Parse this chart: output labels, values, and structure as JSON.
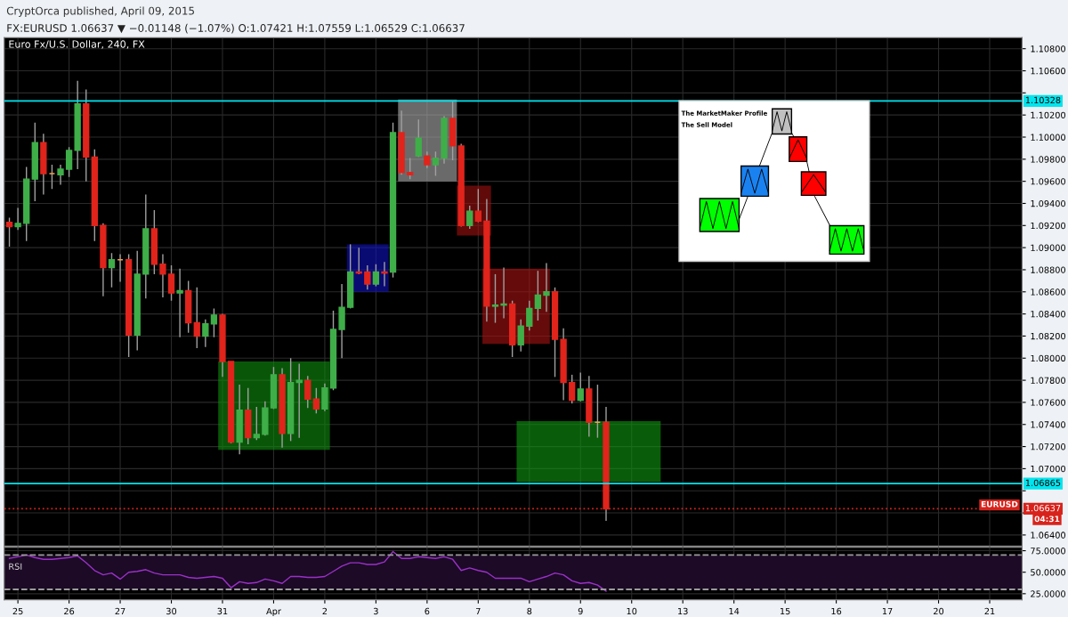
{
  "chart_data": [
    {
      "type": "candlestick",
      "title": "Euro Fx/U.S. Dollar, 240, FX",
      "subtitle": "FX:EURUSD 1.06637 ▼ −0.01148 (−1.07%) O:1.07421 H:1.07559 L:1.06529 C:1.06637",
      "annotations": [
        "CryptOrca published, April 09, 2015",
        "EURUSD",
        "04:31",
        "The MarketMaker Profile",
        "The Sell Model"
      ],
      "categories": [
        null,
        null,
        null,
        null,
        null,
        null,
        null,
        null,
        null,
        null,
        null,
        null,
        null,
        null,
        null,
        null,
        null,
        null,
        null,
        null,
        null,
        null,
        null,
        null,
        null,
        null,
        null,
        null,
        null,
        null,
        null,
        null,
        null,
        null,
        null,
        null,
        null,
        null,
        null,
        null,
        null,
        null,
        null,
        null,
        null,
        null,
        null,
        null,
        null,
        null,
        null,
        null,
        null,
        null,
        null,
        null,
        null,
        null,
        null,
        null,
        null,
        null,
        null,
        null,
        null,
        null,
        null,
        null,
        null,
        null,
        null,
        null,
        null,
        null,
        null,
        null,
        null,
        null,
        null,
        null,
        null,
        null,
        null,
        null,
        null,
        null,
        null,
        null,
        null,
        null,
        null,
        null,
        null,
        null,
        null,
        null,
        null,
        null,
        null,
        null,
        null,
        null,
        null,
        null,
        null,
        null,
        null,
        null,
        null,
        null,
        null,
        null,
        null,
        null,
        null,
        null,
        null,
        null,
        null
      ],
      "ohlc": [
        [
          1.0923,
          1.0927,
          1.0901,
          1.0919
        ],
        [
          1.0919,
          1.0936,
          1.0916,
          1.0922
        ],
        [
          1.0922,
          1.0973,
          1.0906,
          1.0962
        ],
        [
          1.0962,
          1.1013,
          1.0942,
          1.0995
        ],
        [
          1.0995,
          1.1003,
          1.0948,
          1.0967
        ],
        [
          1.0967,
          1.0975,
          1.0953,
          1.0967
        ],
        [
          1.0966,
          1.0975,
          1.0957,
          1.0971
        ],
        [
          1.0971,
          1.0991,
          1.0964,
          1.0988
        ],
        [
          1.0988,
          1.1051,
          1.0971,
          1.103
        ],
        [
          1.103,
          1.1043,
          1.096,
          1.0982
        ],
        [
          1.0982,
          1.0989,
          1.0906,
          1.092
        ],
        [
          1.092,
          1.0922,
          1.0856,
          1.0882
        ],
        [
          1.0882,
          1.0895,
          1.0864,
          1.0889
        ],
        [
          1.0889,
          1.0894,
          1.0869,
          1.0889
        ],
        [
          1.0889,
          1.0894,
          1.0801,
          1.0821
        ],
        [
          1.0821,
          1.0897,
          1.0807,
          1.0876
        ],
        [
          1.0876,
          1.0948,
          1.0854,
          1.0917
        ],
        [
          1.0917,
          1.0934,
          1.0876,
          1.0885
        ],
        [
          1.0885,
          1.0894,
          1.0855,
          1.0876
        ],
        [
          1.0876,
          1.0884,
          1.0852,
          1.0859
        ],
        [
          1.0859,
          1.0881,
          1.0819,
          1.0861
        ],
        [
          1.0861,
          1.087,
          1.0823,
          1.0832
        ],
        [
          1.0832,
          1.0864,
          1.0809,
          1.082
        ],
        [
          1.082,
          1.0835,
          1.081,
          1.0831
        ],
        [
          1.0831,
          1.0845,
          1.0819,
          1.0839
        ],
        [
          1.0839,
          1.084,
          1.0783,
          1.0797
        ],
        [
          1.0797,
          1.0797,
          1.0723,
          1.0724
        ],
        [
          1.0724,
          1.0776,
          1.0713,
          1.0753
        ],
        [
          1.0753,
          1.0773,
          1.0722,
          1.0728
        ],
        [
          1.0728,
          1.0756,
          1.0726,
          1.0731
        ],
        [
          1.0731,
          1.0761,
          1.073,
          1.0755
        ],
        [
          1.0755,
          1.0792,
          1.0754,
          1.0785
        ],
        [
          1.0785,
          1.0791,
          1.0719,
          1.0732
        ],
        [
          1.0732,
          1.08,
          1.0725,
          1.0778
        ],
        [
          1.0778,
          1.0795,
          1.0728,
          1.078
        ],
        [
          1.078,
          1.0784,
          1.0755,
          1.0763
        ],
        [
          1.0763,
          1.0773,
          1.075,
          1.0754
        ],
        [
          1.0754,
          1.0777,
          1.0752,
          1.0773
        ],
        [
          1.0773,
          1.0843,
          1.0771,
          1.0826
        ],
        [
          1.0826,
          1.0867,
          1.08,
          1.0846
        ],
        [
          1.0846,
          1.0903,
          1.0845,
          1.0878
        ],
        [
          1.0878,
          1.09,
          1.0876,
          1.0877
        ],
        [
          1.0878,
          1.0884,
          1.0862,
          1.0867
        ],
        [
          1.0867,
          1.0885,
          1.0865,
          1.0878
        ],
        [
          1.0878,
          1.0887,
          1.0865,
          1.0877
        ],
        [
          1.0878,
          1.1013,
          1.0873,
          1.1004
        ],
        [
          1.1004,
          1.1024,
          1.0966,
          1.0968
        ],
        [
          1.0968,
          1.0981,
          1.0962,
          1.0966
        ],
        [
          1.0983,
          1.1016,
          1.0982,
          1.0999
        ],
        [
          1.0983,
          1.0987,
          1.0972,
          1.0975
        ],
        [
          1.0975,
          1.0987,
          1.0965,
          1.0981
        ],
        [
          1.0981,
          1.1019,
          1.0976,
          1.1017
        ],
        [
          1.1017,
          1.1033,
          1.0979,
          1.0992
        ],
        [
          1.0992,
          1.0994,
          1.0919,
          1.092
        ],
        [
          1.092,
          1.0938,
          1.0917,
          1.0933
        ],
        [
          1.0933,
          1.0953,
          1.0923,
          1.0924
        ],
        [
          1.0924,
          1.0944,
          1.0833,
          1.0847
        ],
        [
          1.0847,
          1.0876,
          1.0832,
          1.0848
        ],
        [
          1.0848,
          1.0882,
          1.0836,
          1.0849
        ],
        [
          1.0849,
          1.0852,
          1.0801,
          1.0812
        ],
        [
          1.0812,
          1.0835,
          1.0806,
          1.0829
        ],
        [
          1.0829,
          1.0852,
          1.0825,
          1.0845
        ],
        [
          1.0845,
          1.0879,
          1.0834,
          1.0857
        ],
        [
          1.0857,
          1.0886,
          1.0842,
          1.086
        ],
        [
          1.086,
          1.0864,
          1.0783,
          1.0817
        ],
        [
          1.0817,
          1.0827,
          1.0762,
          1.0778
        ],
        [
          1.0778,
          1.0785,
          1.0759,
          1.0762
        ],
        [
          1.0762,
          1.0787,
          1.0761,
          1.0772
        ],
        [
          1.0772,
          1.0784,
          1.0729,
          1.0742
        ],
        [
          1.0742,
          1.0776,
          1.0728,
          1.0742
        ],
        [
          1.07421,
          1.07559,
          1.06529,
          1.06637
        ],
        null,
        null,
        null,
        null,
        null,
        null,
        null,
        null,
        null,
        null,
        null,
        null,
        null,
        null,
        null,
        null,
        null,
        null,
        null,
        null,
        null,
        null,
        null,
        null,
        null,
        null,
        null,
        null,
        null,
        null,
        null,
        null,
        null,
        null,
        null,
        null,
        null,
        null,
        null,
        null,
        null,
        null,
        null,
        null,
        null,
        null,
        null,
        null
      ],
      "colors": [
        "#e0241c",
        "#3fae49",
        "#3fae49",
        "#3fae49",
        "#e0241c",
        "#f0a050",
        "#3fae49",
        "#3fae49",
        "#3fae49",
        "#e0241c",
        "#e0241c",
        "#e0241c",
        "#3fae49",
        "#f0a050",
        "#e0241c",
        "#3fae49",
        "#3fae49",
        "#e0241c",
        "#e0241c",
        "#e0241c",
        "#3fae49",
        "#e0241c",
        "#e0241c",
        "#3fae49",
        "#3fae49",
        "#e0241c",
        "#e0241c",
        "#3fae49",
        "#e0241c",
        "#3fae49",
        "#3fae49",
        "#3fae49",
        "#e0241c",
        "#3fae49",
        "#3fae49",
        "#e0241c",
        "#e0241c",
        "#3fae49",
        "#3fae49",
        "#3fae49",
        "#3fae49",
        "#e0241c",
        "#e0241c",
        "#3fae49",
        "#e0241c",
        "#3fae49",
        "#e0241c",
        "#e0241c",
        "#3fae49",
        "#e0241c",
        "#3fae49",
        "#3fae49",
        "#e0241c",
        "#e0241c",
        "#3fae49",
        "#e0241c",
        "#e0241c",
        "#3fae49",
        "#3fae49",
        "#e0241c",
        "#3fae49",
        "#3fae49",
        "#3fae49",
        "#3fae49",
        "#e0241c",
        "#e0241c",
        "#e0241c",
        "#3fae49",
        "#e0241c",
        "#f0a050",
        "#e0241c",
        null,
        null,
        null,
        null,
        null,
        null,
        null,
        null,
        null,
        null,
        null,
        null,
        null,
        null,
        null,
        null,
        null,
        null,
        null,
        null,
        null,
        null,
        null,
        null,
        null,
        null,
        null,
        null,
        null,
        null,
        null,
        null,
        null,
        null,
        null,
        null,
        null,
        null,
        null,
        null,
        null,
        null,
        null,
        null,
        null,
        null,
        null,
        null
      ],
      "ylim": [
        1.063,
        1.109
      ],
      "yticks": [
        {
          "value": 1.064,
          "label": "1.06400"
        },
        {
          "value": 1.066,
          "label": null
        },
        {
          "value": 1.068,
          "label": null
        },
        {
          "value": 1.07,
          "label": "1.07000"
        },
        {
          "value": 1.072,
          "label": "1.07200"
        },
        {
          "value": 1.074,
          "label": "1.07400"
        },
        {
          "value": 1.076,
          "label": "1.07600"
        },
        {
          "value": 1.078,
          "label": "1.07800"
        },
        {
          "value": 1.08,
          "label": "1.08000"
        },
        {
          "value": 1.082,
          "label": "1.08200"
        },
        {
          "value": 1.084,
          "label": "1.08400"
        },
        {
          "value": 1.086,
          "label": "1.08600"
        },
        {
          "value": 1.088,
          "label": "1.08800"
        },
        {
          "value": 1.09,
          "label": "1.09000"
        },
        {
          "value": 1.092,
          "label": "1.09200"
        },
        {
          "value": 1.094,
          "label": "1.09400"
        },
        {
          "value": 1.096,
          "label": "1.09600"
        },
        {
          "value": 1.098,
          "label": "1.09800"
        },
        {
          "value": 1.1,
          "label": "1.10000"
        },
        {
          "value": 1.102,
          "label": "1.10200"
        },
        {
          "value": 1.104,
          "label": null
        },
        {
          "value": 1.106,
          "label": "1.10600"
        },
        {
          "value": 1.108,
          "label": "1.10800"
        }
      ],
      "tick_labels": "y",
      "grid": true,
      "ref_lines": [
        {
          "axis": "y",
          "value": 1.10328,
          "label": "1.10328",
          "color": "#00e5ee",
          "line_style": "solid"
        },
        {
          "axis": "y",
          "value": 1.06865,
          "label": "1.06865",
          "color": "#00e5ee",
          "line_style": "solid"
        },
        {
          "axis": "y",
          "value": 1.06637,
          "label": "1.06637",
          "color": "#d8231c",
          "line_style": "dotted"
        }
      ]
    },
    {
      "type": "line",
      "annotations": [
        "RSI"
      ],
      "categories": [
        null,
        "25",
        null,
        null,
        null,
        null,
        null,
        "26",
        null,
        null,
        null,
        null,
        null,
        "27",
        null,
        null,
        null,
        null,
        null,
        "30",
        null,
        null,
        null,
        null,
        null,
        "31",
        null,
        null,
        null,
        null,
        null,
        "Apr",
        null,
        null,
        null,
        null,
        null,
        "2",
        null,
        null,
        null,
        null,
        null,
        "3",
        null,
        null,
        null,
        null,
        null,
        "6",
        null,
        null,
        null,
        null,
        null,
        "7",
        null,
        null,
        null,
        null,
        null,
        "8",
        null,
        null,
        null,
        null,
        null,
        "9",
        null,
        null,
        null,
        null,
        null,
        "10",
        null,
        null,
        null,
        null,
        null,
        "13",
        null,
        null,
        null,
        null,
        null,
        "14",
        null,
        null,
        null,
        null,
        null,
        "15",
        null,
        null,
        null,
        null,
        null,
        "16",
        null,
        null,
        null,
        null,
        null,
        "17",
        null,
        null,
        null,
        null,
        null,
        "20",
        null,
        null,
        null,
        null,
        null,
        "21",
        null,
        null,
        null
      ],
      "series": [
        {
          "color": "#9b30c8",
          "values": [
            66,
            68,
            70,
            67,
            65,
            65,
            66,
            67,
            69,
            61,
            52,
            47,
            49,
            42,
            50,
            51,
            53,
            49,
            47,
            47,
            47,
            44,
            43,
            44,
            45,
            43,
            32,
            39,
            37,
            38,
            42,
            40,
            37,
            45,
            45,
            44,
            44,
            45,
            51,
            57,
            61,
            61,
            59,
            59,
            62,
            74,
            66,
            66,
            68,
            67,
            66,
            68,
            65,
            52,
            55,
            52,
            50,
            43,
            43,
            43,
            43,
            39,
            42,
            45,
            49,
            47,
            40,
            37,
            38,
            35,
            28,
            null,
            null,
            null,
            null,
            null,
            null,
            null,
            null,
            null,
            null,
            null,
            null,
            null,
            null,
            null,
            null,
            null,
            null,
            null,
            null,
            null,
            null,
            null,
            null,
            null,
            null,
            null,
            null,
            null,
            null,
            null,
            null,
            null,
            null,
            null,
            null,
            null,
            null,
            null,
            null,
            null,
            null,
            null,
            null,
            null,
            null,
            null,
            null
          ]
        }
      ],
      "ylim": [
        18,
        79
      ],
      "yticks": [
        {
          "value": 25,
          "label": "25.0000"
        },
        {
          "value": 50,
          "label": "50.0000"
        },
        {
          "value": 75,
          "label": "75.0000"
        }
      ],
      "grid": true,
      "ref_lines": [
        {
          "axis": "y",
          "value": 70,
          "color": "#9a9a9a",
          "line_style": "dashed"
        },
        {
          "axis": "y",
          "value": 30,
          "color": "#9a9a9a",
          "line_style": "dashed"
        }
      ],
      "bands": [
        {
          "axis": "y",
          "from": 30,
          "to": 70,
          "color": "#1c0a26"
        }
      ]
    }
  ]
}
